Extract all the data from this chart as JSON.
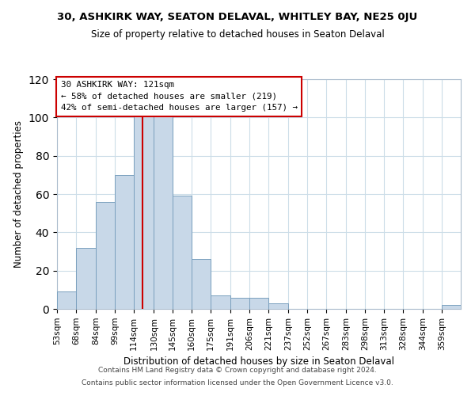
{
  "title1": "30, ASHKIRK WAY, SEATON DELAVAL, WHITLEY BAY, NE25 0JU",
  "title2": "Size of property relative to detached houses in Seaton Delaval",
  "xlabel": "Distribution of detached houses by size in Seaton Delaval",
  "ylabel": "Number of detached properties",
  "bin_labels": [
    "53sqm",
    "68sqm",
    "84sqm",
    "99sqm",
    "114sqm",
    "130sqm",
    "145sqm",
    "160sqm",
    "175sqm",
    "191sqm",
    "206sqm",
    "221sqm",
    "237sqm",
    "252sqm",
    "267sqm",
    "283sqm",
    "298sqm",
    "313sqm",
    "328sqm",
    "344sqm",
    "359sqm"
  ],
  "bar_heights": [
    9,
    32,
    56,
    70,
    101,
    101,
    59,
    26,
    7,
    6,
    6,
    3,
    0,
    0,
    0,
    0,
    0,
    0,
    0,
    0,
    2
  ],
  "bar_color": "#c8d8e8",
  "bar_edge_color": "#7aA0be",
  "vline_x": 121,
  "vline_color": "#cc0000",
  "annotation_title": "30 ASHKIRK WAY: 121sqm",
  "annotation_line1": "← 58% of detached houses are smaller (219)",
  "annotation_line2": "42% of semi-detached houses are larger (157) →",
  "annotation_box_color": "#ffffff",
  "annotation_box_edge": "#cc0000",
  "ylim": [
    0,
    120
  ],
  "yticks": [
    0,
    20,
    40,
    60,
    80,
    100,
    120
  ],
  "footer1": "Contains HM Land Registry data © Crown copyright and database right 2024.",
  "footer2": "Contains public sector information licensed under the Open Government Licence v3.0.",
  "bin_edges": [
    53,
    68,
    84,
    99,
    114,
    130,
    145,
    160,
    175,
    191,
    206,
    221,
    237,
    252,
    267,
    283,
    298,
    313,
    328,
    344,
    359,
    374
  ]
}
